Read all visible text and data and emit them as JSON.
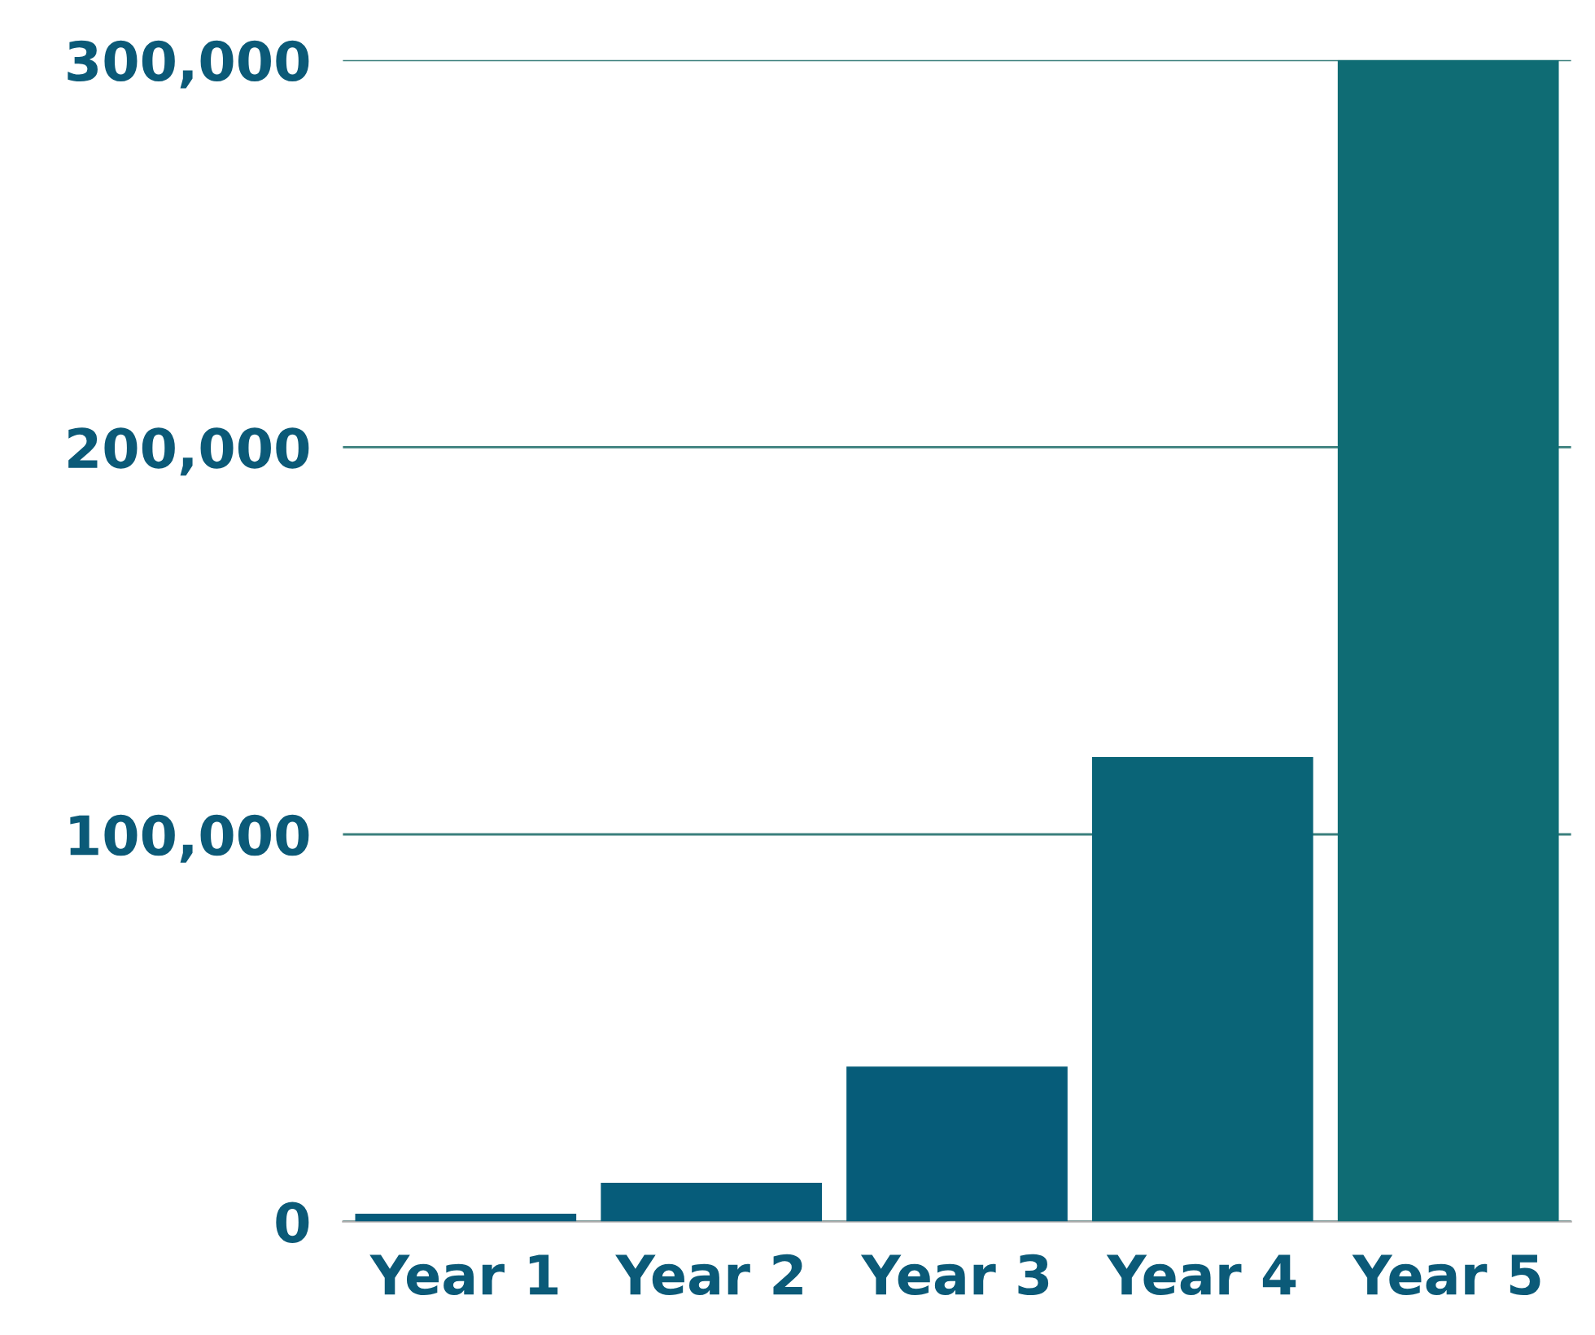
{
  "chart_data": {
    "type": "bar",
    "categories": [
      "Year 1",
      "Year 2",
      "Year 3",
      "Year 4",
      "Year 5"
    ],
    "values": [
      2000,
      10000,
      40000,
      120000,
      300000
    ],
    "colors": [
      "#055a7a",
      "#065c7a",
      "#065c79",
      "#0a6477",
      "#0f6c74"
    ],
    "ylim": [
      0,
      300000
    ],
    "yticks": [
      {
        "value": 0,
        "label": "0"
      },
      {
        "value": 100000,
        "label": "100,000"
      },
      {
        "value": 200000,
        "label": "200,000"
      },
      {
        "value": 300000,
        "label": "300,000"
      }
    ],
    "grid": "y"
  }
}
